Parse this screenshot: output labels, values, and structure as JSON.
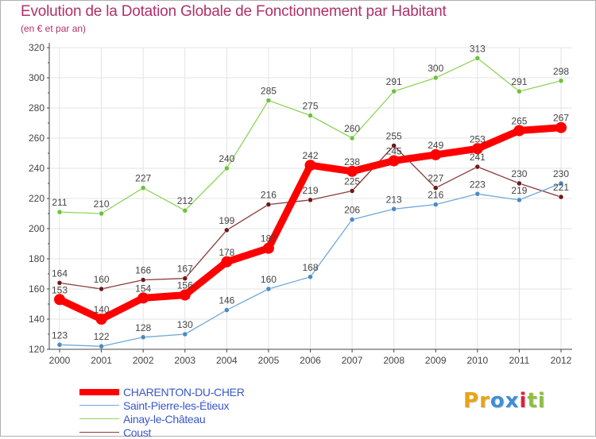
{
  "header": {
    "title": "Evolution de la Dotation Globale de Fonctionnement par Habitant",
    "subtitle": "(en € et par an)"
  },
  "logo": {
    "letters": [
      "P",
      "r",
      "o",
      "x",
      "i",
      "t",
      "i"
    ]
  },
  "colors": {
    "title": "#b0306a",
    "axis": "#444444",
    "grid": "#e3e3e3",
    "legend_text": "#3a57c8",
    "logo": [
      "#e8a317",
      "#e8a317",
      "#3d8fd6",
      "#3d8fd6",
      "#d7263d",
      "#8cbf3f",
      "#8cbf3f"
    ]
  },
  "chart_data": {
    "type": "line",
    "title": "Evolution de la Dotation Globale de Fonctionnement par Habitant",
    "subtitle": "(en € et par an)",
    "xlabel": "",
    "ylabel": "",
    "categories": [
      "2000",
      "2001",
      "2002",
      "2003",
      "2004",
      "2005",
      "2006",
      "2007",
      "2008",
      "2009",
      "2010",
      "2011",
      "2012"
    ],
    "ylim": [
      120,
      320
    ],
    "yticks": [
      120,
      140,
      160,
      180,
      200,
      220,
      240,
      260,
      280,
      300,
      320
    ],
    "grid": true,
    "legend_position": "bottom-left",
    "series": [
      {
        "name": "Ainay-le-Château",
        "color": "#8fd45a",
        "marker": "#6cc23c",
        "values": [
          211,
          210,
          227,
          212,
          240,
          285,
          275,
          260,
          291,
          300,
          313,
          291,
          298
        ]
      },
      {
        "name": "Coust",
        "color": "#8b3a3a",
        "marker": "#6b1a1a",
        "values": [
          164,
          160,
          166,
          167,
          199,
          216,
          219,
          225,
          255,
          227,
          241,
          230,
          221
        ]
      },
      {
        "name": "Saint-Pierre-les-Étieux",
        "color": "#6fa8dc",
        "marker": "#4a8ac4",
        "values": [
          123,
          122,
          128,
          130,
          146,
          160,
          168,
          206,
          213,
          216,
          223,
          219,
          230
        ]
      },
      {
        "name": "CHARENTON-DU-CHER",
        "color": "#ff0000",
        "marker": "#ff0000",
        "thick": true,
        "values": [
          153,
          140,
          154,
          156,
          178,
          187,
          242,
          238,
          245,
          249,
          253,
          265,
          267
        ]
      }
    ],
    "legend_order": [
      "CHARENTON-DU-CHER",
      "Saint-Pierre-les-Étieux",
      "Ainay-le-Château",
      "Coust"
    ]
  }
}
